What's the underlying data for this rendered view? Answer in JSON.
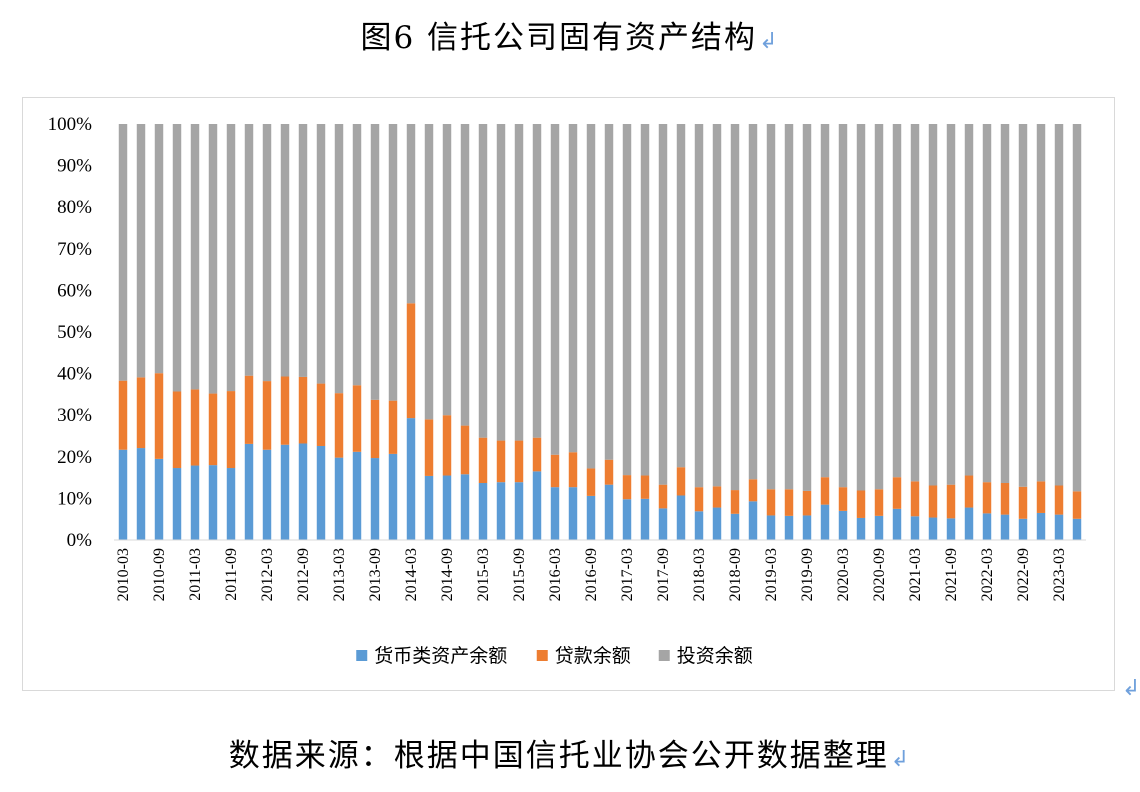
{
  "title": "图6  信托公司固有资产结构",
  "source": "数据来源：根据中国信托业协会公开数据整理",
  "return_mark": "↲",
  "colors": {
    "money": "#5b9bd5",
    "loan": "#ed7d31",
    "invest": "#a5a5a5"
  },
  "chart_data": {
    "type": "stacked_bar_100",
    "y_ticks": [
      "0%",
      "10%",
      "20%",
      "30%",
      "40%",
      "50%",
      "60%",
      "70%",
      "80%",
      "90%",
      "100%"
    ],
    "ylim": [
      0,
      100
    ],
    "x_tick_labels": [
      "2010-03",
      "2010-09",
      "2011-03",
      "2011-09",
      "2012-03",
      "2012-09",
      "2013-03",
      "2013-09",
      "2014-03",
      "2014-09",
      "2015-03",
      "2015-09",
      "2016-03",
      "2016-09",
      "2017-03",
      "2017-09",
      "2018-03",
      "2018-09",
      "2019-03",
      "2019-09",
      "2020-03",
      "2020-09",
      "2021-03",
      "2021-09",
      "2022-03",
      "2022-09",
      "2023-03"
    ],
    "categories": [
      "2010-03",
      "2010-06",
      "2010-09",
      "2010-12",
      "2011-03",
      "2011-06",
      "2011-09",
      "2011-12",
      "2012-03",
      "2012-06",
      "2012-09",
      "2012-12",
      "2013-03",
      "2013-06",
      "2013-09",
      "2013-12",
      "2014-03",
      "2014-06",
      "2014-09",
      "2014-12",
      "2015-03",
      "2015-06",
      "2015-09",
      "2015-12",
      "2016-03",
      "2016-06",
      "2016-09",
      "2016-12",
      "2017-03",
      "2017-06",
      "2017-09",
      "2017-12",
      "2018-03",
      "2018-06",
      "2018-09",
      "2018-12",
      "2019-03",
      "2019-06",
      "2019-09",
      "2019-12",
      "2020-03",
      "2020-06",
      "2020-09",
      "2020-12",
      "2021-03",
      "2021-06",
      "2021-09",
      "2021-12",
      "2022-03",
      "2022-06",
      "2022-09",
      "2022-12",
      "2023-03",
      "2023-06"
    ],
    "series": [
      {
        "name": "货币类资产余额",
        "values": [
          21.7,
          22.1,
          19.5,
          17.3,
          17.9,
          18.0,
          17.3,
          23.1,
          21.7,
          22.9,
          23.2,
          22.6,
          19.8,
          21.2,
          19.7,
          20.7,
          29.3,
          15.4,
          15.5,
          15.8,
          13.7,
          13.9,
          13.9,
          16.5,
          12.7,
          12.7,
          10.6,
          13.3,
          9.8,
          9.9,
          7.6,
          10.7,
          6.9,
          7.8,
          6.3,
          9.3,
          5.9,
          5.8,
          5.9,
          8.5,
          7.0,
          5.3,
          5.8,
          7.5,
          5.7,
          5.4,
          5.2,
          7.8,
          6.4,
          6.1,
          5.1,
          6.5,
          6.1,
          5.1
        ]
      },
      {
        "name": "贷款余额",
        "values": [
          16.6,
          17.0,
          20.6,
          18.4,
          18.3,
          17.2,
          18.5,
          16.4,
          16.5,
          16.4,
          16.0,
          15.0,
          15.5,
          16.0,
          14.0,
          12.8,
          27.6,
          13.6,
          14.5,
          11.7,
          10.9,
          10.0,
          10.0,
          8.1,
          7.8,
          8.4,
          6.6,
          6.0,
          5.8,
          5.6,
          5.7,
          6.8,
          5.8,
          5.1,
          5.7,
          5.3,
          6.3,
          6.4,
          5.9,
          6.6,
          5.7,
          6.6,
          6.4,
          7.6,
          8.4,
          7.7,
          8.1,
          7.7,
          7.5,
          7.6,
          7.7,
          7.6,
          7.0,
          6.6
        ]
      },
      {
        "name": "投资余额",
        "values": [
          61.7,
          60.9,
          59.9,
          64.3,
          63.8,
          64.8,
          64.2,
          60.5,
          61.8,
          60.7,
          60.8,
          62.4,
          64.7,
          62.8,
          66.3,
          66.5,
          43.1,
          71.0,
          70.0,
          72.5,
          75.4,
          76.1,
          76.1,
          75.4,
          79.5,
          78.9,
          82.8,
          80.7,
          84.4,
          84.5,
          86.7,
          82.5,
          87.3,
          87.1,
          88.0,
          85.4,
          87.8,
          87.8,
          88.2,
          84.9,
          87.3,
          88.1,
          87.8,
          84.9,
          85.9,
          86.9,
          86.7,
          84.5,
          86.1,
          86.3,
          87.2,
          85.9,
          86.9,
          88.3
        ]
      }
    ],
    "legend_position": "bottom",
    "grid": false
  }
}
